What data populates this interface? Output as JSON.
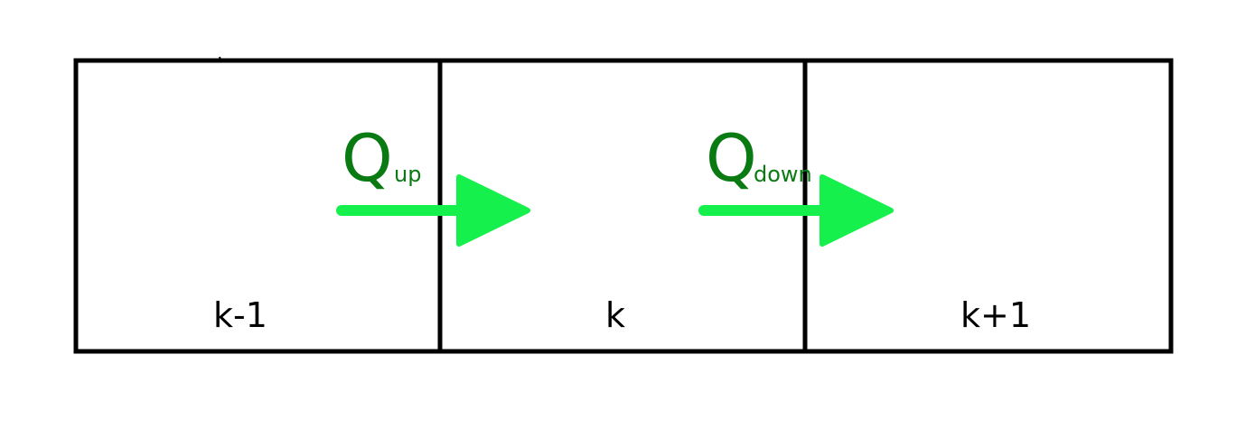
{
  "cells": [
    {
      "label": "k-1"
    },
    {
      "label": "k"
    },
    {
      "label": "k+1"
    }
  ],
  "fluxes": [
    {
      "symbol": "Q",
      "subscript": "up"
    },
    {
      "symbol": "Q",
      "subscript": "down"
    }
  ],
  "colors": {
    "border": "#000000",
    "arrow": "#16f04c",
    "flux_text": "#0a7a12",
    "cell_text": "#000000"
  }
}
